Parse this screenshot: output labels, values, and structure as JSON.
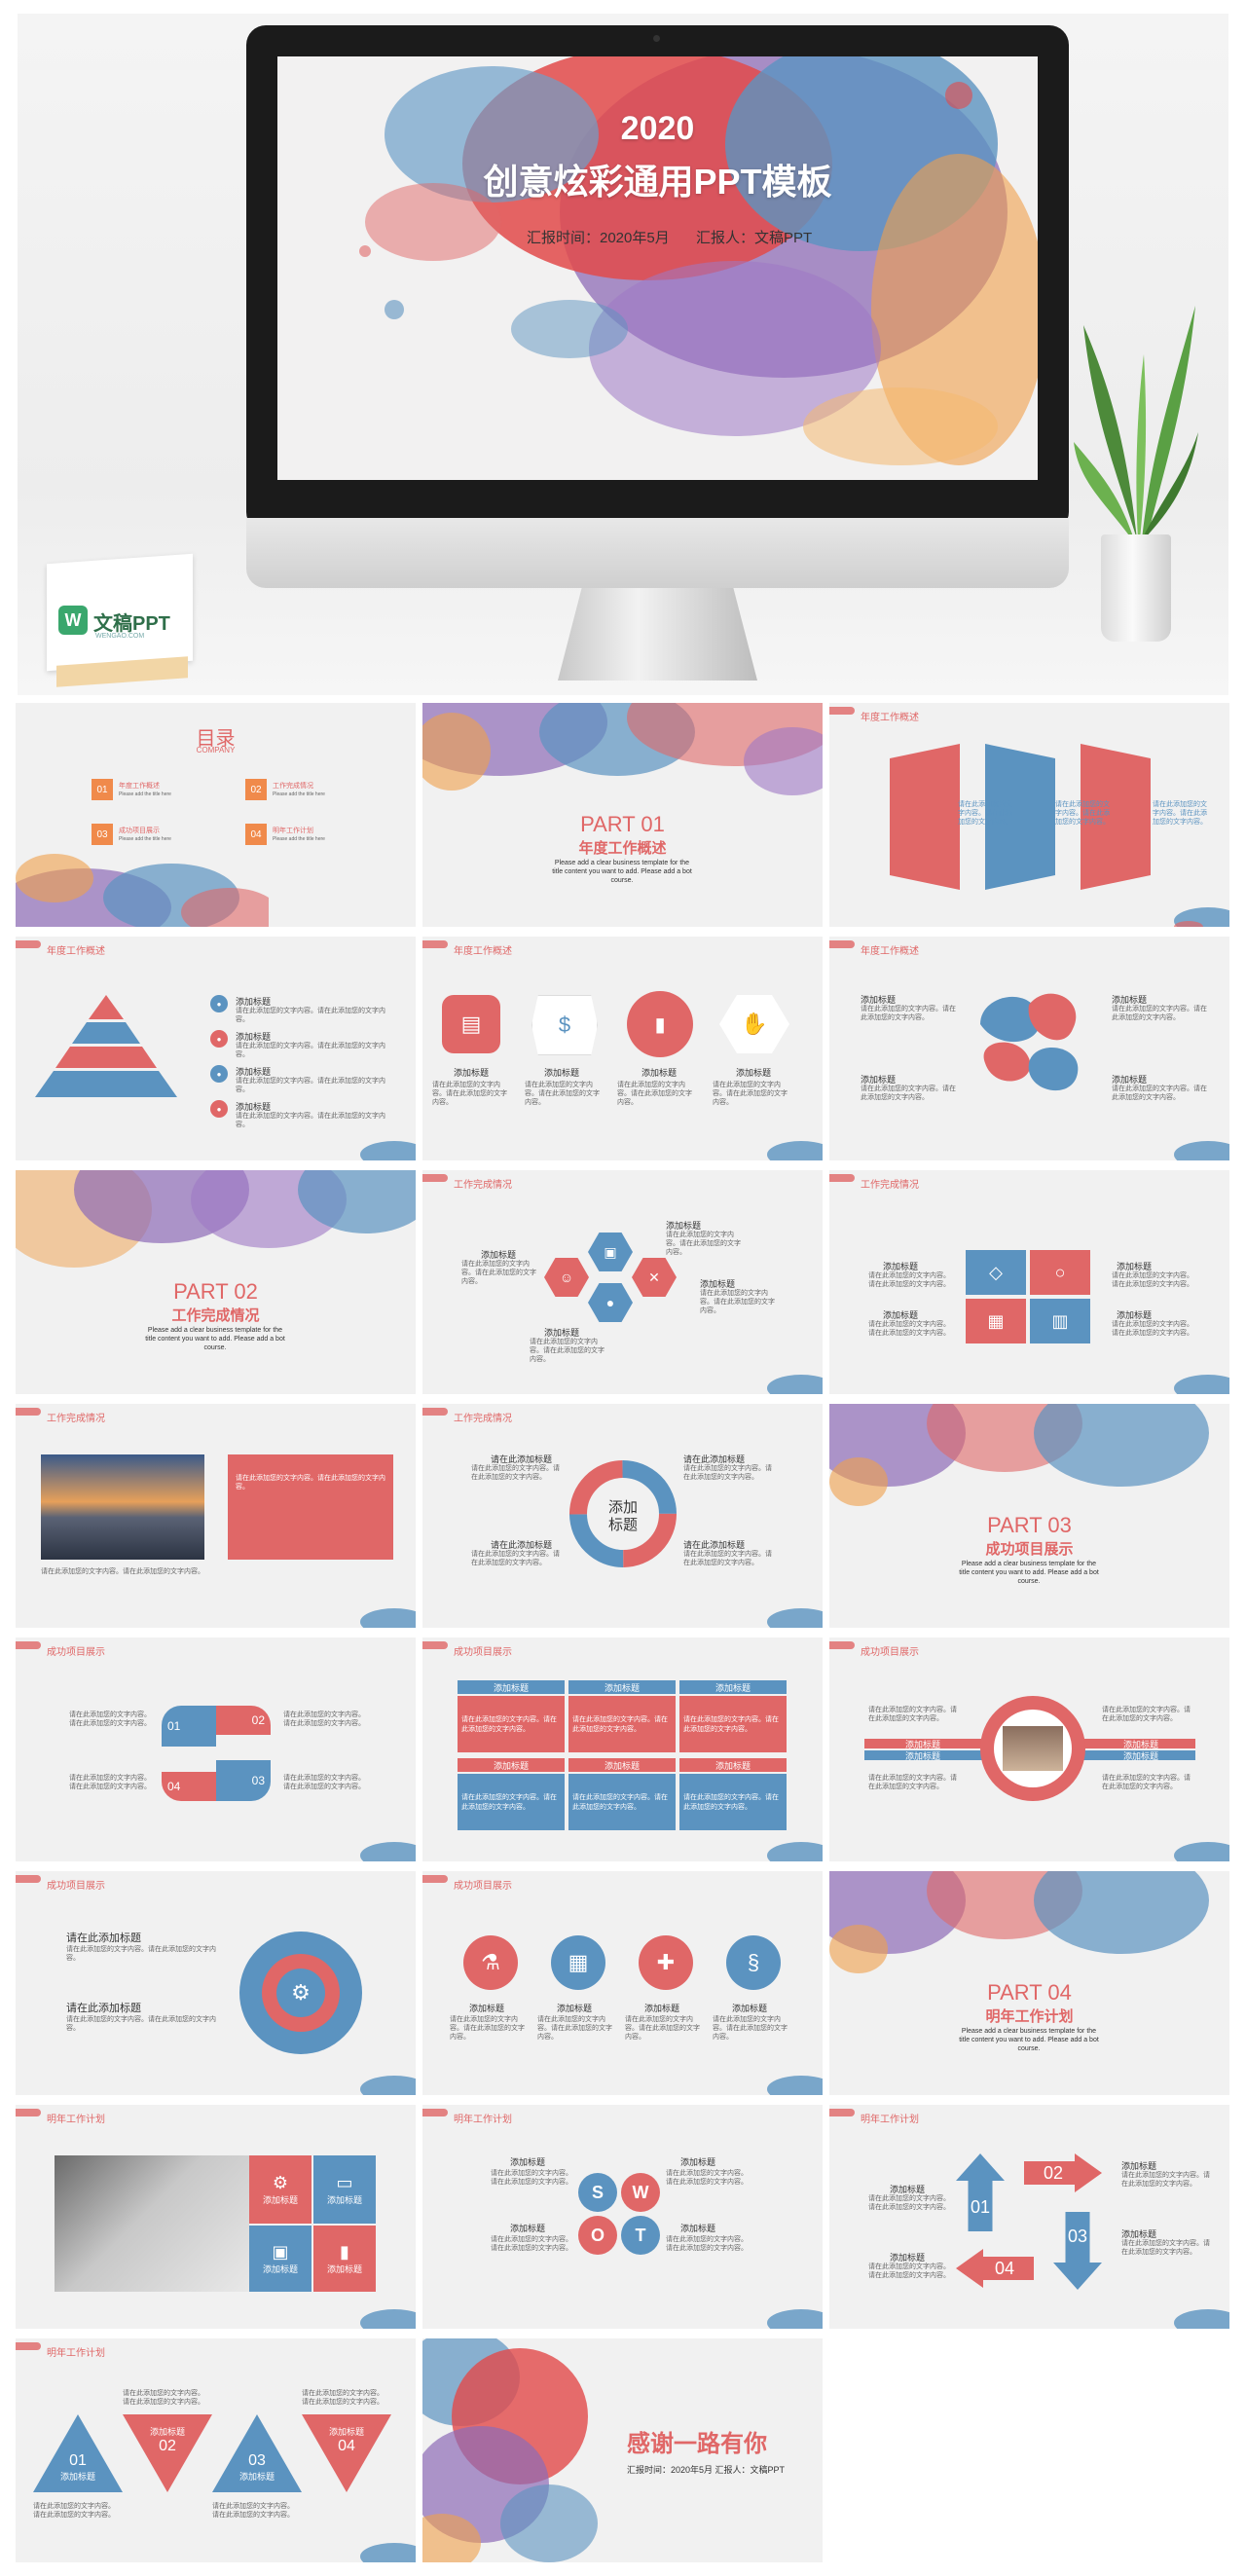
{
  "hero": {
    "year": "2020",
    "title": "创意炫彩通用PPT模板",
    "report_time": "汇报时间：2020年5月",
    "reporter": "汇报人：文稿PPT",
    "logo_text": "文稿PPT",
    "logo_sub": "WENGAO.COM"
  },
  "colors": {
    "red": "#e06767",
    "blue": "#5b93c0",
    "purple": "#8d6bb6",
    "orange": "#f0a04b",
    "bg": "#f1f1f1"
  },
  "common": {
    "add_title": "添加标题",
    "body_text": "请在此添加您的文字内容。请在此添加您的文字内容。",
    "desc_en": "Please add a clear business template for the title content you want to add. Please add a bot course.",
    "input_title": "请在此添加标题",
    "add_title_short": "添加标题"
  },
  "toc": {
    "title": "目录",
    "subtitle": "COMPANY",
    "items": [
      {
        "num": "01",
        "label": "年度工作概述",
        "sub": "Please add the title here"
      },
      {
        "num": "02",
        "label": "工作完成情况",
        "sub": "Please add the title here"
      },
      {
        "num": "03",
        "label": "成功项目展示",
        "sub": "Please add the title here"
      },
      {
        "num": "04",
        "label": "明年工作计划",
        "sub": "Please add the title here"
      }
    ]
  },
  "parts": [
    {
      "no": "PART 01",
      "title": "年度工作概述"
    },
    {
      "no": "PART 02",
      "title": "工作完成情况"
    },
    {
      "no": "PART 03",
      "title": "成功项目展示"
    },
    {
      "no": "PART 04",
      "title": "明年工作计划"
    }
  ],
  "headers": {
    "s1": "年度工作概述",
    "s2": "工作完成情况",
    "s3": "成功项目展示",
    "s4": "明年工作计划"
  },
  "center_label": "添加\n标题",
  "center_label_1": "添加",
  "center_label_2": "标题",
  "steps": [
    "01",
    "02",
    "03",
    "04"
  ],
  "swot": [
    "S",
    "W",
    "O",
    "T"
  ],
  "ending": {
    "thanks": "感谢一路有你",
    "info": "汇报时间：2020年5月   汇报人：文稿PPT"
  }
}
